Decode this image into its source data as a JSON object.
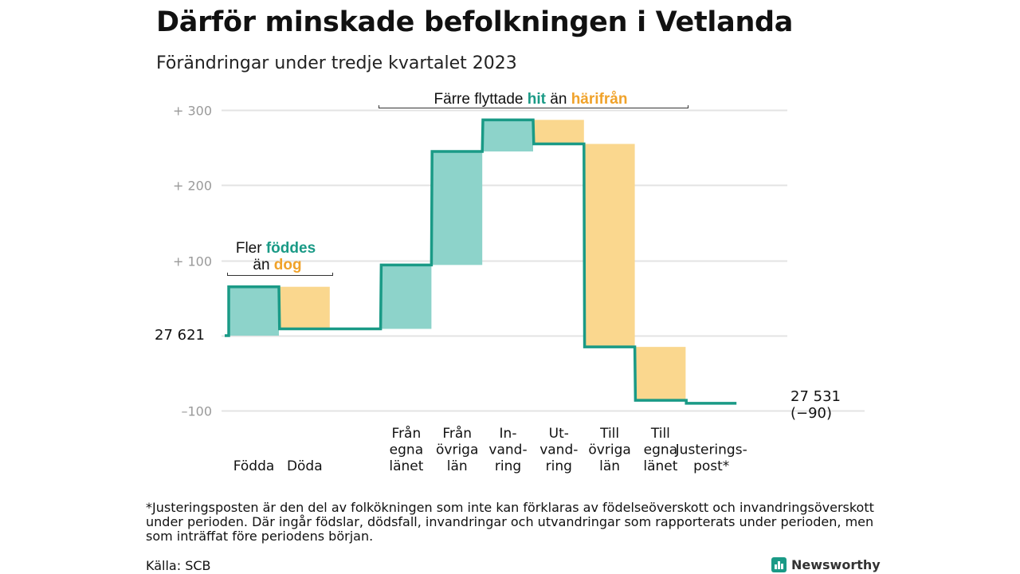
{
  "title": "Därför minskade befolkningen i Vetlanda",
  "subtitle": "Förändringar under tredje kvartalet 2023",
  "colors": {
    "gain": "#8dd3ca",
    "loss": "#fad78e",
    "line": "#1a9a86",
    "gain_text": "#1a9a86",
    "loss_text": "#f0a22a",
    "grid": "#e3e3e3"
  },
  "annotations": {
    "births": {
      "pre": "Fler",
      "hl1": "föddes",
      "mid": "än",
      "hl2": "dog"
    },
    "moves": {
      "pre": "Färre flyttade",
      "hl1": "hit",
      "mid": "än",
      "hl2": "härifrån"
    }
  },
  "chart_data": {
    "type": "waterfall",
    "start_value": 27621,
    "start_label": "27  621",
    "end_value": 27531,
    "end_label": "27 531",
    "end_change_label": "(−90)",
    "yaxis_relative_to_start": true,
    "ylim": [
      -110,
      300
    ],
    "yticks": [
      {
        "value": 300,
        "label": "+  300"
      },
      {
        "value": 200,
        "label": "+  200"
      },
      {
        "value": 100,
        "label": "+  100"
      },
      {
        "value": 0,
        "label": ""
      },
      {
        "value": -100,
        "label": "–100"
      }
    ],
    "grid": true,
    "steps": [
      {
        "category": [
          "Födda"
        ],
        "value": 65,
        "kind": "gain"
      },
      {
        "category": [
          "Döda"
        ],
        "value": -56,
        "kind": "loss"
      },
      {
        "category": [],
        "value": 0,
        "kind": "gap"
      },
      {
        "category": [
          "Från",
          "egna",
          "länet"
        ],
        "value": 85,
        "kind": "gain"
      },
      {
        "category": [
          "Från",
          "övriga",
          "län"
        ],
        "value": 151,
        "kind": "gain"
      },
      {
        "category": [
          "In-",
          "vand-",
          "ring"
        ],
        "value": 42,
        "kind": "gain"
      },
      {
        "category": [
          "Ut-",
          "vand-",
          "ring"
        ],
        "value": -32,
        "kind": "loss"
      },
      {
        "category": [
          "Till",
          "övriga",
          "län"
        ],
        "value": -270,
        "kind": "loss"
      },
      {
        "category": [
          "Till",
          "egna",
          "länet"
        ],
        "value": -71,
        "kind": "loss"
      },
      {
        "category": [
          "Justerings-",
          "post*"
        ],
        "value": -4,
        "kind": "adjust"
      }
    ]
  },
  "footnote": "*Justeringsposten är den del av folkökningen som inte kan förklaras av födelseöverskott och invandringsöverskott under perioden. Där ingår födslar, dödsfall, invandringar och utvandringar som rapporterats under perioden, men som inträffat före periodens början.",
  "source": "Källa: SCB",
  "brand": "Newsworthy"
}
